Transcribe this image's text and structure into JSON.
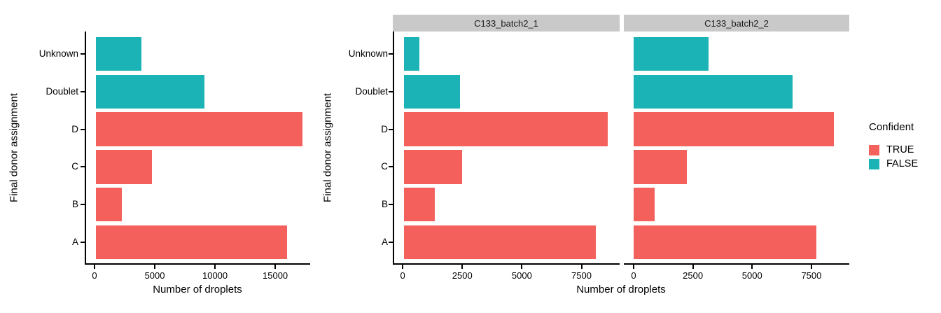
{
  "figure": {
    "background": "#FFFFFF",
    "axis_color": "#000000",
    "strip_background": "#C9C9C9",
    "color_true": "#F4615C",
    "color_false": "#1BB3B6"
  },
  "legend": {
    "title": "Confident",
    "entries": [
      {
        "label": "TRUE",
        "color": "#F4615C"
      },
      {
        "label": "FALSE",
        "color": "#1BB3B6"
      }
    ]
  },
  "chart_data": [
    {
      "type": "bar",
      "orientation": "horizontal",
      "title": "",
      "xlabel": "Number of droplets",
      "ylabel": "Final donor assignment",
      "categories_top_to_bottom": [
        "Unknown",
        "Doublet",
        "D",
        "C",
        "B",
        "A"
      ],
      "confident_by_category": {
        "Unknown": "FALSE",
        "Doublet": "FALSE",
        "D": "TRUE",
        "C": "TRUE",
        "B": "TRUE",
        "A": "TRUE"
      },
      "values": [
        3800,
        9050,
        17250,
        4700,
        2150,
        16000
      ],
      "xticks": [
        0,
        5000,
        10000,
        15000
      ],
      "xlim": [
        0,
        17900
      ],
      "grid": false,
      "legend_position": "none"
    },
    {
      "type": "bar",
      "orientation": "horizontal",
      "title": "",
      "xlabel": "Number of droplets",
      "ylabel": "Final donor assignment",
      "categories_top_to_bottom": [
        "Unknown",
        "Doublet",
        "D",
        "C",
        "B",
        "A"
      ],
      "confident_by_category": {
        "Unknown": "FALSE",
        "Doublet": "FALSE",
        "D": "TRUE",
        "C": "TRUE",
        "B": "TRUE",
        "A": "TRUE"
      },
      "facets": [
        {
          "label": "C133_batch2_1",
          "values": [
            650,
            2350,
            8600,
            2450,
            1300,
            8100
          ]
        },
        {
          "label": "C133_batch2_2",
          "values": [
            3150,
            6700,
            8450,
            2250,
            880,
            7700
          ]
        }
      ],
      "xticks": [
        0,
        2500,
        5000,
        7500
      ],
      "xlim": [
        0,
        9100
      ],
      "grid": false,
      "legend_position": "right"
    }
  ]
}
